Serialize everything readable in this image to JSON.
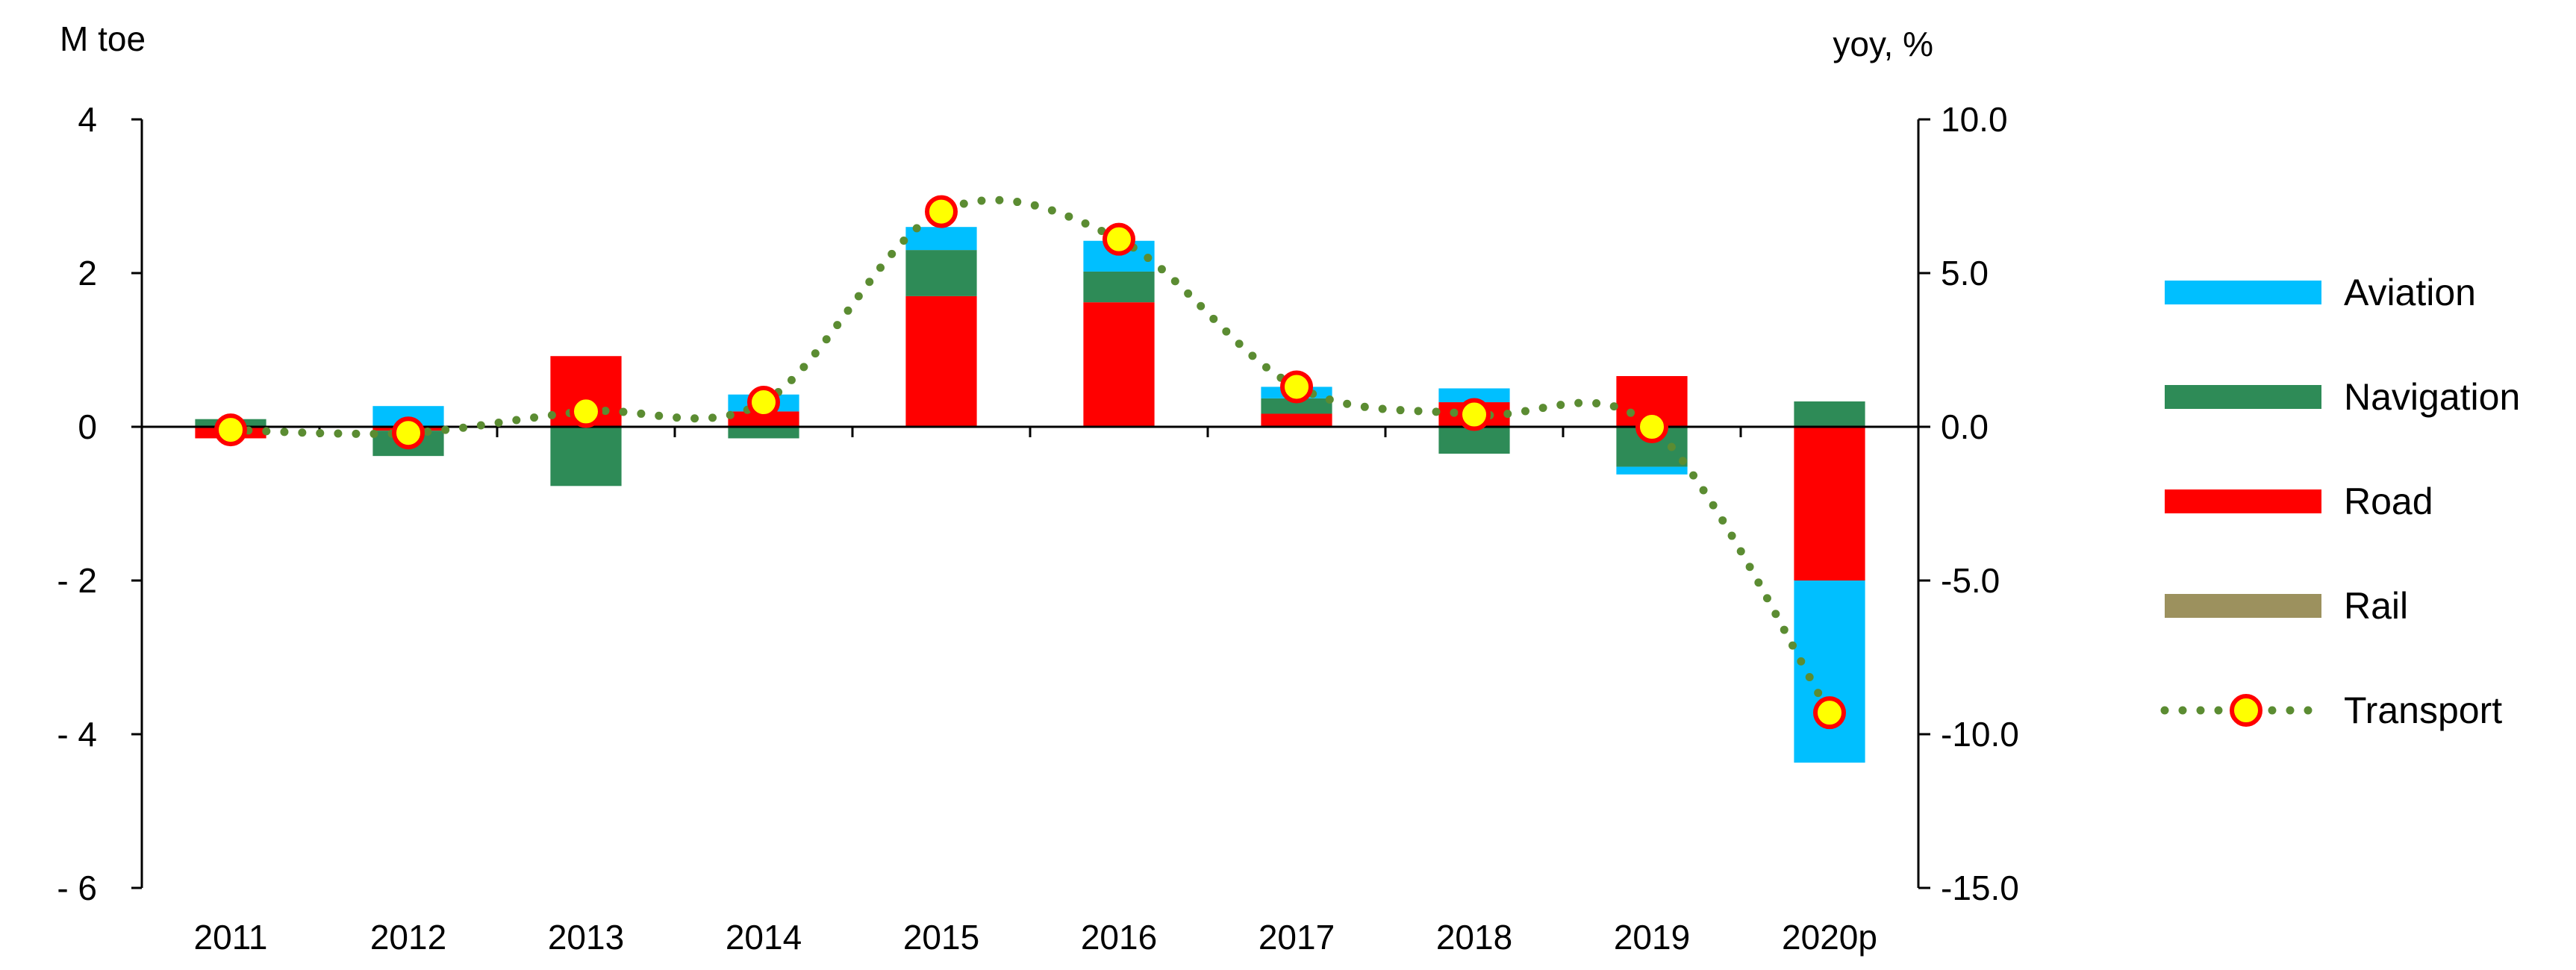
{
  "chart_data": {
    "type": "bar",
    "stacked": true,
    "categories": [
      "2011",
      "2012",
      "2013",
      "2014",
      "2015",
      "2016",
      "2017",
      "2018",
      "2019",
      "2020p"
    ],
    "left_axis": {
      "unit": "M toe",
      "ylim": [
        -6,
        4
      ],
      "ticks": [
        4,
        2,
        0,
        -2,
        -4,
        -6
      ],
      "tick_labels": [
        "4",
        "2",
        "0",
        "- 2",
        "- 4",
        "- 6"
      ]
    },
    "right_axis": {
      "unit": "yoy, %",
      "ylim": [
        -15,
        10
      ],
      "ticks": [
        10,
        5,
        0,
        -5,
        -10,
        -15
      ],
      "tick_labels": [
        "10.0",
        "5.0",
        "0.0",
        "-5.0",
        "-10.0",
        "-15.0"
      ]
    },
    "series": [
      {
        "name": "Aviation",
        "kind": "bar",
        "axis": "left",
        "color": "#00BFFF",
        "values": [
          0.0,
          0.27,
          0.0,
          0.22,
          0.3,
          0.4,
          0.15,
          0.18,
          -0.1,
          -2.37
        ]
      },
      {
        "name": "Navigation",
        "kind": "bar",
        "axis": "left",
        "color": "#2E8B57",
        "values": [
          0.1,
          -0.33,
          -0.77,
          -0.15,
          0.6,
          0.4,
          0.2,
          -0.35,
          -0.52,
          0.33
        ]
      },
      {
        "name": "Road",
        "kind": "bar",
        "axis": "left",
        "color": "#FF0000",
        "values": [
          -0.15,
          -0.05,
          0.92,
          0.2,
          1.7,
          1.62,
          0.17,
          0.32,
          0.66,
          -2.0
        ]
      },
      {
        "name": "Rail",
        "kind": "bar",
        "axis": "left",
        "color": "#9C915E",
        "values": [
          0,
          0,
          0,
          0,
          0,
          0,
          0,
          0,
          0,
          0
        ]
      },
      {
        "name": "Transport",
        "kind": "line",
        "axis": "right",
        "line_color": "#5B8C32",
        "marker_fill": "#FFFF00",
        "marker_edge": "#FF0000",
        "values": [
          -0.1,
          -0.2,
          0.5,
          0.8,
          7.0,
          6.1,
          1.3,
          0.4,
          0.0,
          -9.3
        ]
      }
    ],
    "legend_position": "right",
    "grid": false
  }
}
